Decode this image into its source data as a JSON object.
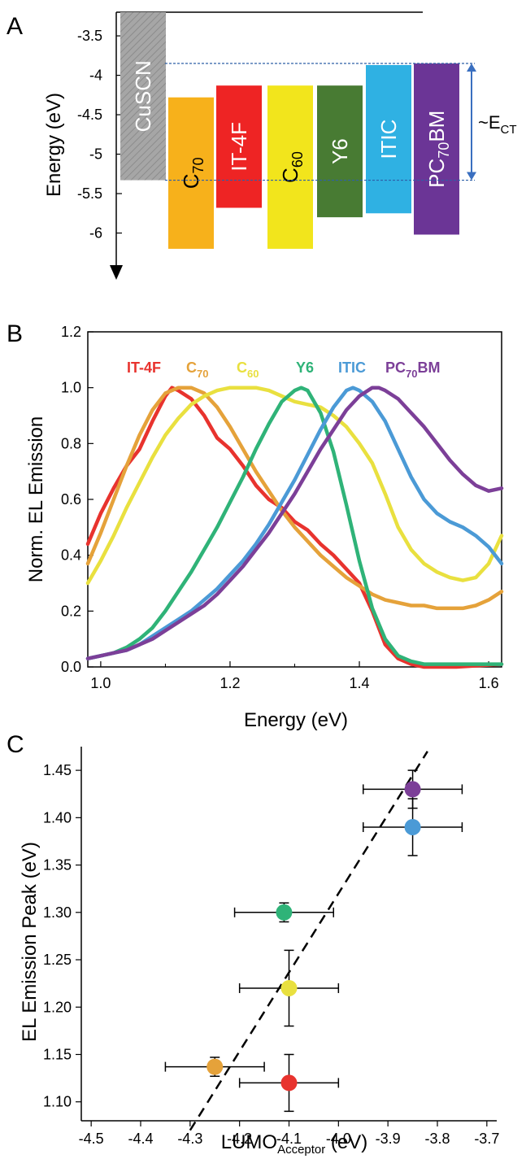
{
  "panel_letters": [
    "A",
    "B",
    "C"
  ],
  "chart_data": [
    {
      "panel": "A",
      "type": "bar",
      "ylabel": "Energy (eV)",
      "ylim": [
        -6.5,
        -3.2
      ],
      "yticks": [
        -3.5,
        -4,
        -4.5,
        -5,
        -5.5,
        -6
      ],
      "ytick_labels": [
        "-3.5",
        "-4",
        "-4.5",
        "-5",
        "-5.5",
        "-6"
      ],
      "annotation": {
        "text_main": "~E",
        "text_sub": "CT",
        "from": -3.85,
        "to": -5.33
      },
      "bars": [
        {
          "label_main": "CuSCN",
          "label_sub": "",
          "top": -3.2,
          "bottom": -5.33,
          "color": "#a6a6a6",
          "hatched": true,
          "label_dark": false
        },
        {
          "label_main": "C",
          "label_sub": "70",
          "top": -4.28,
          "bottom": -6.2,
          "color": "#f7b11b",
          "label_dark": true
        },
        {
          "label_main": "IT-4F",
          "label_sub": "",
          "top": -4.13,
          "bottom": -5.68,
          "color": "#ee2424",
          "label_dark": false
        },
        {
          "label_main": "C",
          "label_sub": "60",
          "top": -4.13,
          "bottom": -6.2,
          "color": "#f2e51c",
          "label_dark": true
        },
        {
          "label_main": "Y6",
          "label_sub": "",
          "top": -4.13,
          "bottom": -5.8,
          "color": "#487b33",
          "label_dark": false
        },
        {
          "label_main": "ITIC",
          "label_sub": "",
          "top": -3.87,
          "bottom": -5.75,
          "color": "#2fb1e3",
          "label_dark": false
        },
        {
          "label_main": "PC",
          "label_sub": "70",
          "label_tail": "BM",
          "top": -3.85,
          "bottom": -6.02,
          "color": "#6b3596",
          "label_dark": false
        }
      ]
    },
    {
      "panel": "B",
      "type": "line",
      "xlabel": "Energy (eV)",
      "ylabel": "Norm. EL Emission",
      "xlim": [
        0.98,
        1.62
      ],
      "ylim": [
        0.0,
        1.2
      ],
      "xticks": [
        1.0,
        1.2,
        1.4,
        1.6
      ],
      "xtick_labels": [
        "1.0",
        "1.2",
        "1.4",
        "1.6"
      ],
      "yticks": [
        0.0,
        0.2,
        0.4,
        0.6,
        0.8,
        1.0,
        1.2
      ],
      "ytick_labels": [
        "0.0",
        "0.2",
        "0.4",
        "0.6",
        "0.8",
        "1.0",
        "1.2"
      ],
      "series": [
        {
          "name_main": "IT-4F",
          "name_sub": "",
          "color": "#e8332e",
          "x": [
            0.98,
            1.0,
            1.02,
            1.04,
            1.06,
            1.08,
            1.1,
            1.11,
            1.12,
            1.14,
            1.16,
            1.18,
            1.2,
            1.22,
            1.24,
            1.26,
            1.28,
            1.3,
            1.32,
            1.34,
            1.36,
            1.38,
            1.4,
            1.42,
            1.44,
            1.46,
            1.48,
            1.5,
            1.55,
            1.62
          ],
          "y": [
            0.44,
            0.55,
            0.64,
            0.72,
            0.78,
            0.88,
            0.97,
            1.0,
            0.99,
            0.96,
            0.9,
            0.82,
            0.78,
            0.72,
            0.65,
            0.6,
            0.57,
            0.52,
            0.49,
            0.44,
            0.4,
            0.35,
            0.3,
            0.2,
            0.08,
            0.03,
            0.01,
            0.0,
            0.0,
            0.01
          ]
        },
        {
          "name_main": "C",
          "name_sub": "70",
          "color": "#e5a23a",
          "x": [
            0.98,
            1.0,
            1.02,
            1.04,
            1.06,
            1.08,
            1.1,
            1.12,
            1.14,
            1.16,
            1.18,
            1.2,
            1.22,
            1.24,
            1.26,
            1.28,
            1.3,
            1.32,
            1.34,
            1.36,
            1.38,
            1.4,
            1.42,
            1.44,
            1.46,
            1.48,
            1.5,
            1.52,
            1.54,
            1.56,
            1.58,
            1.6,
            1.62
          ],
          "y": [
            0.37,
            0.48,
            0.6,
            0.72,
            0.83,
            0.92,
            0.98,
            1.0,
            1.0,
            0.98,
            0.93,
            0.86,
            0.78,
            0.7,
            0.63,
            0.56,
            0.5,
            0.45,
            0.4,
            0.36,
            0.32,
            0.29,
            0.26,
            0.24,
            0.23,
            0.22,
            0.22,
            0.21,
            0.21,
            0.21,
            0.22,
            0.24,
            0.27
          ]
        },
        {
          "name_main": "C",
          "name_sub": "60",
          "color": "#e9e03f",
          "x": [
            0.98,
            1.0,
            1.02,
            1.04,
            1.06,
            1.08,
            1.1,
            1.12,
            1.14,
            1.16,
            1.18,
            1.2,
            1.22,
            1.24,
            1.26,
            1.28,
            1.3,
            1.32,
            1.34,
            1.36,
            1.38,
            1.4,
            1.42,
            1.44,
            1.46,
            1.48,
            1.5,
            1.52,
            1.54,
            1.56,
            1.58,
            1.6,
            1.62
          ],
          "y": [
            0.3,
            0.38,
            0.47,
            0.57,
            0.66,
            0.75,
            0.83,
            0.89,
            0.94,
            0.97,
            0.99,
            1.0,
            1.0,
            1.0,
            0.99,
            0.97,
            0.95,
            0.94,
            0.93,
            0.9,
            0.86,
            0.8,
            0.73,
            0.62,
            0.5,
            0.42,
            0.37,
            0.34,
            0.32,
            0.31,
            0.32,
            0.37,
            0.47
          ]
        },
        {
          "name_main": "Y6",
          "name_sub": "",
          "color": "#2fb378",
          "x": [
            0.98,
            1.0,
            1.02,
            1.04,
            1.06,
            1.08,
            1.1,
            1.12,
            1.14,
            1.16,
            1.18,
            1.2,
            1.22,
            1.24,
            1.26,
            1.28,
            1.3,
            1.31,
            1.32,
            1.34,
            1.36,
            1.38,
            1.4,
            1.42,
            1.44,
            1.46,
            1.48,
            1.5,
            1.55,
            1.62
          ],
          "y": [
            0.03,
            0.04,
            0.05,
            0.07,
            0.1,
            0.14,
            0.2,
            0.27,
            0.34,
            0.42,
            0.5,
            0.59,
            0.68,
            0.78,
            0.87,
            0.95,
            0.99,
            1.0,
            0.99,
            0.91,
            0.77,
            0.58,
            0.38,
            0.21,
            0.1,
            0.04,
            0.02,
            0.01,
            0.01,
            0.01
          ]
        },
        {
          "name_main": "ITIC",
          "name_sub": "",
          "color": "#4b9ad6",
          "x": [
            0.98,
            1.0,
            1.02,
            1.04,
            1.06,
            1.08,
            1.1,
            1.12,
            1.14,
            1.16,
            1.18,
            1.2,
            1.22,
            1.24,
            1.26,
            1.28,
            1.3,
            1.32,
            1.34,
            1.36,
            1.38,
            1.39,
            1.4,
            1.42,
            1.44,
            1.46,
            1.48,
            1.5,
            1.52,
            1.54,
            1.56,
            1.58,
            1.6,
            1.62
          ],
          "y": [
            0.03,
            0.04,
            0.05,
            0.06,
            0.08,
            0.11,
            0.14,
            0.17,
            0.2,
            0.24,
            0.28,
            0.33,
            0.38,
            0.44,
            0.51,
            0.59,
            0.67,
            0.76,
            0.85,
            0.93,
            0.99,
            1.0,
            0.99,
            0.95,
            0.88,
            0.78,
            0.68,
            0.6,
            0.55,
            0.52,
            0.5,
            0.47,
            0.43,
            0.37
          ]
        },
        {
          "name_main": "PC",
          "name_sub": "70",
          "name_tail": "BM",
          "color": "#7c3f98",
          "x": [
            0.98,
            1.0,
            1.02,
            1.04,
            1.06,
            1.08,
            1.1,
            1.12,
            1.14,
            1.16,
            1.18,
            1.2,
            1.22,
            1.24,
            1.26,
            1.28,
            1.3,
            1.32,
            1.34,
            1.36,
            1.38,
            1.4,
            1.42,
            1.43,
            1.44,
            1.46,
            1.48,
            1.5,
            1.52,
            1.54,
            1.56,
            1.58,
            1.6,
            1.62
          ],
          "y": [
            0.03,
            0.04,
            0.05,
            0.06,
            0.08,
            0.1,
            0.13,
            0.16,
            0.19,
            0.22,
            0.26,
            0.31,
            0.36,
            0.42,
            0.48,
            0.55,
            0.62,
            0.7,
            0.78,
            0.85,
            0.92,
            0.97,
            1.0,
            1.0,
            0.99,
            0.96,
            0.91,
            0.86,
            0.8,
            0.74,
            0.69,
            0.65,
            0.63,
            0.64
          ]
        }
      ]
    },
    {
      "panel": "C",
      "type": "scatter",
      "xlabel_main": "LUMO",
      "xlabel_sub": "Acceptor",
      "xlabel_tail": " (eV)",
      "ylabel": "EL Emission Peak (eV)",
      "xlim": [
        -4.52,
        -3.68
      ],
      "ylim": [
        1.08,
        1.475
      ],
      "xticks": [
        -4.5,
        -4.4,
        -4.3,
        -4.2,
        -4.1,
        -4.0,
        -3.9,
        -3.8,
        -3.7
      ],
      "xtick_labels": [
        "-4.5",
        "-4.4",
        "-4.3",
        "-4.2",
        "-4.1",
        "-4.0",
        "-3.9",
        "-3.8",
        "-3.7"
      ],
      "yticks": [
        1.1,
        1.15,
        1.2,
        1.25,
        1.3,
        1.35,
        1.4,
        1.45
      ],
      "ytick_labels": [
        "1.10",
        "1.15",
        "1.20",
        "1.25",
        "1.30",
        "1.35",
        "1.40",
        "1.45"
      ],
      "fit_line": {
        "x": [
          -4.3,
          -3.82
        ],
        "y": [
          1.07,
          1.47
        ]
      },
      "points": [
        {
          "x": -4.1,
          "y": 1.12,
          "xerr": 0.1,
          "yerr": 0.03,
          "color": "#e8332e"
        },
        {
          "x": -4.25,
          "y": 1.137,
          "xerr": 0.1,
          "yerr": 0.01,
          "color": "#e5a23a"
        },
        {
          "x": -4.1,
          "y": 1.22,
          "xerr": 0.1,
          "yerr": 0.04,
          "color": "#e9e03f"
        },
        {
          "x": -4.11,
          "y": 1.3,
          "xerr": 0.1,
          "yerr": 0.01,
          "color": "#2fb378"
        },
        {
          "x": -3.85,
          "y": 1.39,
          "xerr": 0.1,
          "yerr": 0.03,
          "color": "#4b9ad6"
        },
        {
          "x": -3.85,
          "y": 1.43,
          "xerr": 0.1,
          "yerr": 0.02,
          "color": "#7c3f98"
        }
      ]
    }
  ]
}
